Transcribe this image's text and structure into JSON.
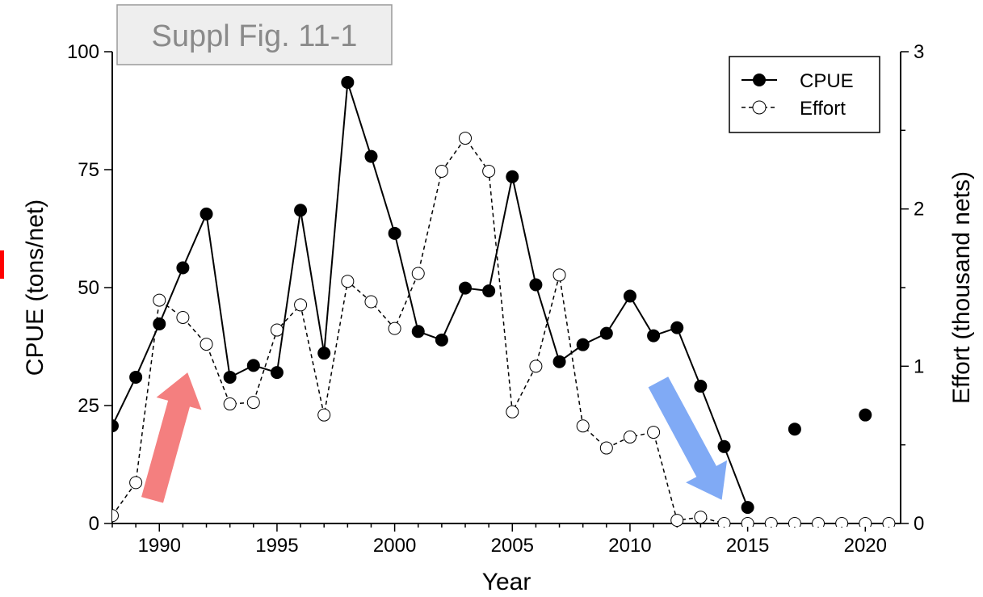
{
  "chart_data": {
    "type": "line",
    "figure_label": "Suppl Fig. 11-1",
    "xlabel": "Year",
    "ylabel_left": "CPUE (tons/net)",
    "ylabel_right": "Effort (thousand nets)",
    "xlim": [
      1988,
      2021.5
    ],
    "ylim_left": [
      0,
      100
    ],
    "ylim_right": [
      0,
      3
    ],
    "x_ticks": [
      1990,
      1995,
      2000,
      2005,
      2010,
      2015,
      2020
    ],
    "y_ticks_left": [
      0,
      25,
      50,
      75,
      100
    ],
    "y_ticks_right": [
      0,
      1,
      2,
      3
    ],
    "legend_position": "top-right",
    "grid": false,
    "series": [
      {
        "name": "CPUE",
        "axis": "left",
        "style": "solid line, filled circle markers",
        "color": "#000000",
        "x": [
          1988,
          1989,
          1990,
          1991,
          1992,
          1993,
          1994,
          1995,
          1996,
          1997,
          1998,
          1999,
          2000,
          2001,
          2002,
          2003,
          2004,
          2005,
          2006,
          2007,
          2008,
          2009,
          2010,
          2011,
          2012,
          2013,
          2014,
          2015,
          2017,
          2020
        ],
        "y": [
          20.7,
          31.0,
          42.3,
          54.2,
          65.6,
          31.0,
          33.5,
          32.0,
          66.4,
          36.1,
          93.5,
          77.8,
          61.5,
          40.7,
          38.9,
          49.9,
          49.3,
          73.5,
          50.6,
          34.3,
          37.9,
          40.3,
          48.2,
          39.8,
          41.5,
          29.1,
          16.3,
          3.4,
          20.0,
          23.0
        ],
        "segments": [
          [
            0,
            27
          ]
        ]
      },
      {
        "name": "Effort",
        "axis": "right",
        "style": "dashed line, open circle markers",
        "color": "#000000",
        "x": [
          1988,
          1989,
          1990,
          1991,
          1992,
          1993,
          1994,
          1995,
          1996,
          1997,
          1998,
          1999,
          2000,
          2001,
          2002,
          2003,
          2004,
          2005,
          2006,
          2007,
          2008,
          2009,
          2010,
          2011,
          2012,
          2013,
          2014,
          2015,
          2016,
          2017,
          2018,
          2019,
          2020,
          2021
        ],
        "y": [
          0.05,
          0.26,
          1.42,
          1.31,
          1.14,
          0.76,
          0.77,
          1.23,
          1.39,
          0.69,
          1.54,
          1.41,
          1.24,
          1.59,
          2.24,
          2.45,
          2.24,
          0.71,
          1.0,
          1.58,
          0.62,
          0.48,
          0.55,
          0.58,
          0.02,
          0.04,
          0.0,
          0.0,
          0.0,
          0.0,
          0.0,
          0.0,
          0.0,
          0.0
        ]
      }
    ],
    "annotations": [
      {
        "type": "arrow",
        "direction": "up",
        "color": "#f47f7f",
        "from": [
          1989.7,
          5
        ],
        "to": [
          1991.2,
          32
        ]
      },
      {
        "type": "arrow",
        "direction": "down",
        "color": "#80aaf5",
        "from": [
          2011.2,
          30
        ],
        "to": [
          2013.9,
          5
        ]
      },
      {
        "type": "edge-fragment",
        "color": "#ff0000"
      }
    ]
  }
}
